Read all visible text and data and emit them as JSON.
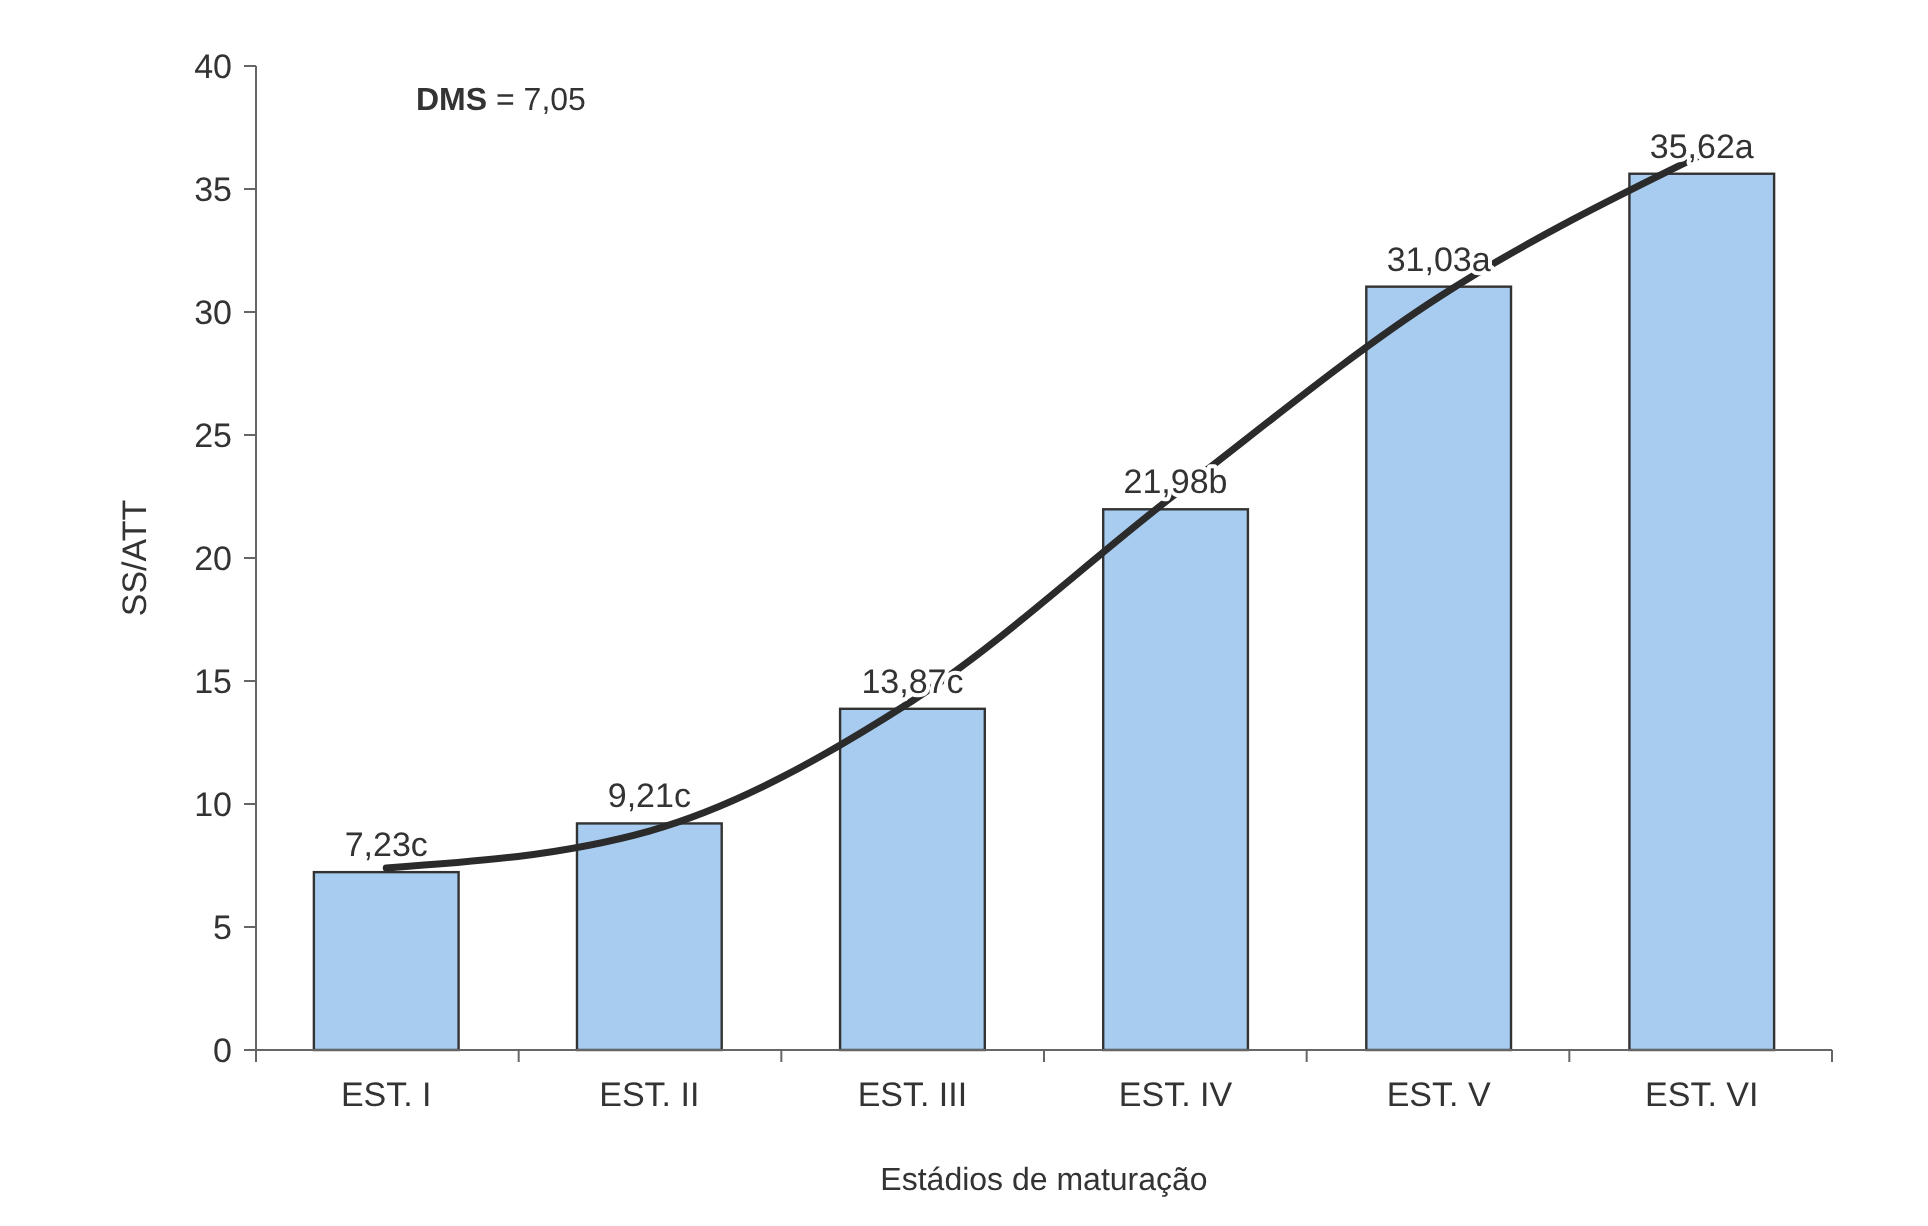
{
  "chart_data": {
    "type": "bar",
    "xlabel": "Estádios de maturação",
    "ylabel": "SS/ATT",
    "categories": [
      "EST. I",
      "EST. II",
      "EST. III",
      "EST. IV",
      "EST. V",
      "EST. VI"
    ],
    "ylim": [
      0,
      40
    ],
    "yticks": [
      0,
      5,
      10,
      15,
      20,
      25,
      30,
      35,
      40
    ],
    "grid": false,
    "annotations": [
      "DMS = 7,05"
    ],
    "series": [
      {
        "color": "#a8ccf0",
        "values": [
          7.23,
          9.21,
          13.87,
          21.98,
          31.03,
          35.62
        ],
        "value_labels": [
          "7,23c",
          "9,21c",
          "13,87c",
          "21,98b",
          "31,03a",
          "35,62a"
        ]
      },
      {
        "type": "line",
        "color": "#2b2b2b",
        "x": [
          "EST. I",
          "EST. II",
          "EST. III",
          "EST. IV",
          "EST. V",
          "EST. VI"
        ],
        "values": [
          7.4,
          8.9,
          14.2,
          22.6,
          30.6,
          36.4
        ],
        "marker": "none"
      }
    ]
  }
}
